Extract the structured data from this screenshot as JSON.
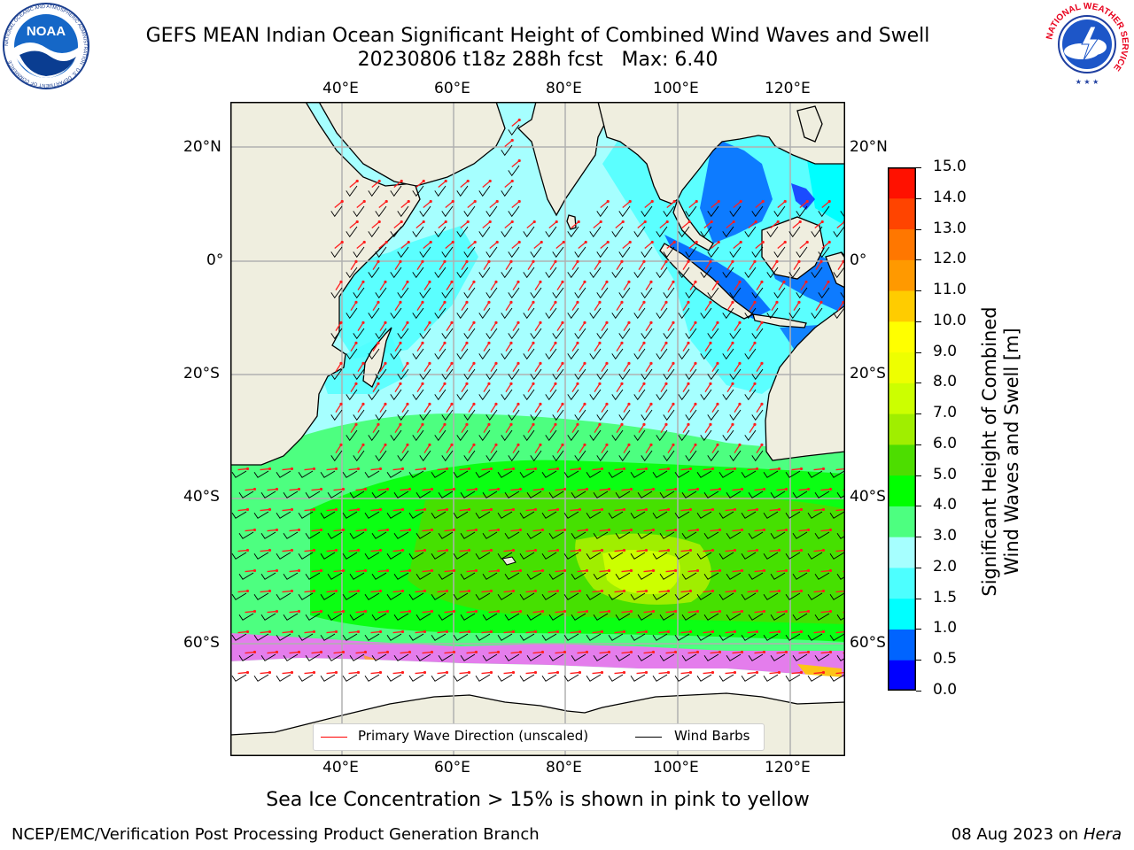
{
  "title": {
    "line1": "GEFS MEAN Indian Ocean Significant Height of Combined Wind Waves and Swell",
    "line2": "20230806 t18z 288h fcst   Max: 6.40"
  },
  "logos": {
    "left": {
      "icon": "noaa-logo",
      "text": "NOAA",
      "ring_text": "NATIONAL OCEANIC AND ATMOSPHERIC ADMINISTRATION · U.S. DEPARTMENT OF COMMERCE"
    },
    "right": {
      "icon": "nws-logo",
      "ring_text": "NATIONAL WEATHER SERVICE"
    }
  },
  "map": {
    "lon_labels": [
      "40°E",
      "60°E",
      "80°E",
      "100°E",
      "120°E"
    ],
    "lat_labels": [
      "20°N",
      "0°",
      "20°S",
      "40°S",
      "60°S"
    ],
    "lon_range": [
      20,
      130
    ],
    "lat_range": [
      -75,
      27
    ],
    "colors": {
      "land": "#efeedf",
      "sea_ice_note": "pink to yellow",
      "wave_arrow": "#ff1f1f",
      "wind_barb": "#000000"
    }
  },
  "legend": {
    "items": [
      {
        "label": "Primary Wave Direction (unscaled)",
        "color": "#ff0000"
      },
      {
        "label": "Wind Barbs",
        "color": "#000000"
      }
    ]
  },
  "colorbar": {
    "label_line1": "Significant Height of Combined",
    "label_line2": "Wind Waves and Swell [m]",
    "ticks": [
      "0.0",
      "0.5",
      "1.0",
      "1.5",
      "2.0",
      "3.0",
      "4.0",
      "5.0",
      "6.0",
      "7.0",
      "8.0",
      "9.0",
      "10.0",
      "11.0",
      "12.0",
      "13.0",
      "14.0",
      "15.0"
    ],
    "colors": [
      "#0000ff",
      "#0064ff",
      "#00ffff",
      "#4dffff",
      "#a6ffff",
      "#4dff80",
      "#00ff00",
      "#4ddd00",
      "#a0ee00",
      "#ccff00",
      "#eeff00",
      "#ffff00",
      "#ffcc00",
      "#ff9900",
      "#ff7700",
      "#ff4400",
      "#ff1100"
    ]
  },
  "subtitle": "Sea Ice Concentration > 15% is shown in pink to yellow",
  "footer": {
    "left": "NCEP/EMC/Verification Post Processing Product Generation Branch",
    "right_prefix": "08 Aug 2023 on",
    "right_host": "Hera"
  }
}
